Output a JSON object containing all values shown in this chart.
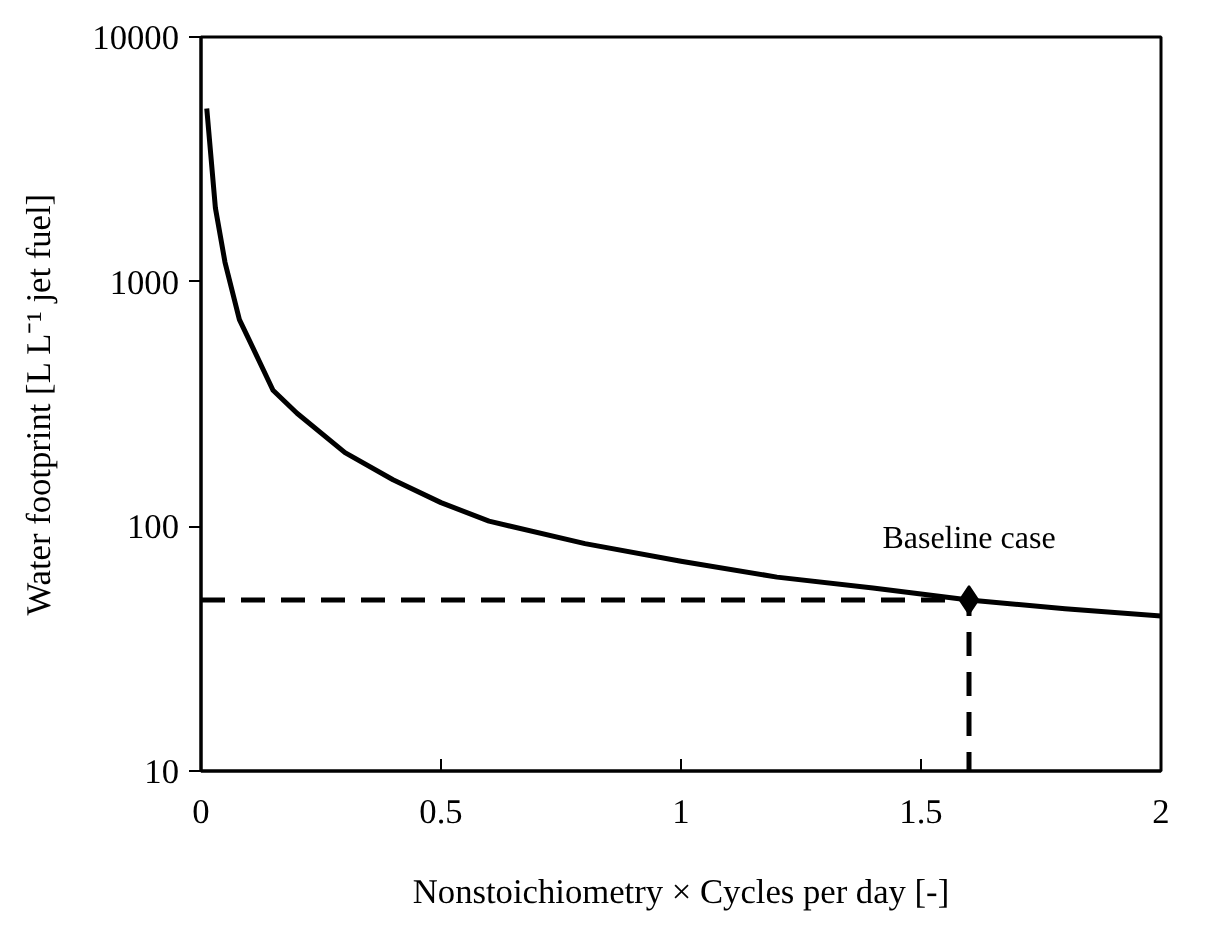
{
  "chart_data": {
    "type": "line",
    "xlabel": "Nonstoichiometry × Cycles per day [-]",
    "ylabel": "Water footprint [L L⁻¹ jet fuel]",
    "xlim": [
      0,
      2
    ],
    "xticks": [
      0,
      {
        "value": 0.5,
        "label": "0.5"
      },
      1,
      {
        "value": 1.5,
        "label": "1.5"
      },
      2
    ],
    "ylim": [
      10,
      10000
    ],
    "yticks": [
      10,
      100,
      1000,
      10000
    ],
    "log": true,
    "grid": false,
    "series": [
      {
        "color": "#000000",
        "line_style": "solid",
        "x": [
          0.012,
          0.03,
          0.05,
          0.08,
          0.1,
          0.15,
          0.2,
          0.3,
          0.4,
          0.5,
          0.6,
          0.8,
          1.0,
          1.2,
          1.4,
          1.6,
          1.8,
          2.0
        ],
        "values": [
          5100,
          2000,
          1200,
          700,
          580,
          360,
          290,
          200,
          155,
          125,
          105,
          85,
          72,
          62,
          56,
          50,
          46,
          43
        ]
      },
      {
        "type": "line",
        "color": "#000000",
        "line_style": "dashed",
        "x": [
          0,
          1.6,
          1.6
        ],
        "values": [
          50,
          50,
          10
        ]
      },
      {
        "type": "scatter",
        "color": "#000000",
        "marker": "diamond",
        "x": [
          1.6
        ],
        "values": [
          50
        ]
      }
    ],
    "annotations": [
      {
        "text": "Baseline case",
        "x": 1.6,
        "y": 50
      }
    ]
  }
}
